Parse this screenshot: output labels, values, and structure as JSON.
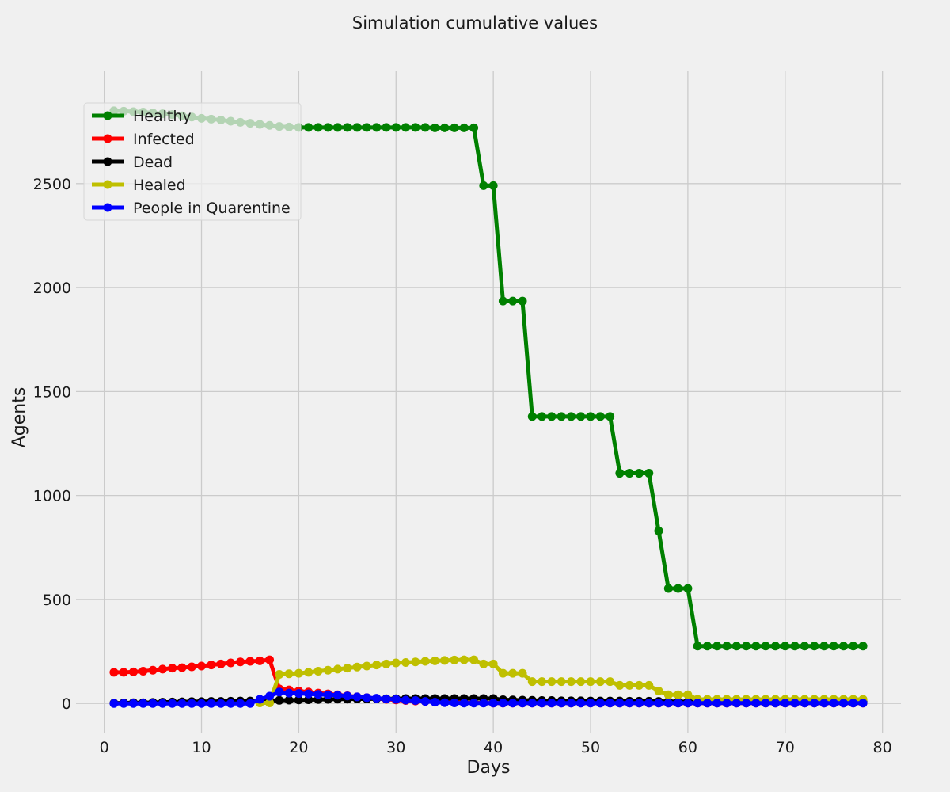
{
  "chart_data": {
    "type": "line",
    "title": "Simulation cumulative values",
    "xlabel": "Days",
    "ylabel": "Agents",
    "xlim": [
      -2.9,
      81.9
    ],
    "ylim": [
      -140,
      3040
    ],
    "xticks": [
      0,
      10,
      20,
      30,
      40,
      50,
      60,
      70,
      80
    ],
    "yticks": [
      0,
      500,
      1000,
      1500,
      2000,
      2500
    ],
    "grid": true,
    "legend_position": "upper-left",
    "x": [
      1,
      2,
      3,
      4,
      5,
      6,
      7,
      8,
      9,
      10,
      11,
      12,
      13,
      14,
      15,
      16,
      17,
      18,
      19,
      20,
      21,
      22,
      23,
      24,
      25,
      26,
      27,
      28,
      29,
      30,
      31,
      32,
      33,
      34,
      35,
      36,
      37,
      38,
      39,
      40,
      41,
      42,
      43,
      44,
      45,
      46,
      47,
      48,
      49,
      50,
      51,
      52,
      53,
      54,
      55,
      56,
      57,
      58,
      59,
      60,
      61,
      62,
      63,
      64,
      65,
      66,
      67,
      68,
      69,
      70,
      71,
      72,
      73,
      74,
      75,
      76,
      77,
      78
    ],
    "series": [
      {
        "name": "Healthy",
        "color": "#008000",
        "values": [
          2850,
          2848,
          2846,
          2844,
          2840,
          2836,
          2832,
          2826,
          2820,
          2814,
          2810,
          2806,
          2800,
          2795,
          2790,
          2785,
          2780,
          2775,
          2772,
          2770,
          2770,
          2770,
          2770,
          2770,
          2770,
          2770,
          2770,
          2770,
          2770,
          2770,
          2770,
          2770,
          2770,
          2768,
          2768,
          2768,
          2768,
          2768,
          2490,
          2490,
          1935,
          1935,
          1935,
          1380,
          1380,
          1380,
          1380,
          1380,
          1380,
          1380,
          1380,
          1380,
          1107,
          1107,
          1107,
          1107,
          830,
          553,
          553,
          553,
          276,
          276,
          276,
          276,
          276,
          276,
          276,
          276,
          276,
          276,
          276,
          276,
          276,
          276,
          276,
          276,
          276,
          276
        ]
      },
      {
        "name": "Infected",
        "color": "#ff0000",
        "values": [
          150,
          150,
          152,
          155,
          160,
          165,
          170,
          172,
          176,
          180,
          185,
          190,
          195,
          200,
          203,
          205,
          210,
          70,
          65,
          60,
          55,
          50,
          46,
          42,
          37,
          32,
          28,
          24,
          20,
          17,
          14,
          12,
          10,
          8,
          6,
          5,
          4,
          3,
          3,
          2,
          2,
          2,
          2,
          2,
          2,
          2,
          2,
          2,
          2,
          2,
          2,
          2,
          2,
          2,
          2,
          2,
          2,
          2,
          2,
          2,
          2,
          2,
          2,
          2,
          2,
          2,
          2,
          2,
          2,
          2,
          2,
          2,
          2,
          2,
          2,
          2,
          2,
          2
        ]
      },
      {
        "name": "Dead",
        "color": "#000000",
        "values": [
          2,
          3,
          4,
          4,
          5,
          6,
          7,
          8,
          9,
          9,
          10,
          10,
          11,
          12,
          12,
          13,
          14,
          15,
          16,
          17,
          18,
          19,
          20,
          21,
          21,
          22,
          22,
          23,
          23,
          23,
          24,
          24,
          24,
          24,
          24,
          24,
          24,
          24,
          24,
          24,
          18,
          17,
          16,
          15,
          14,
          14,
          13,
          13,
          13,
          12,
          12,
          12,
          12,
          11,
          11,
          11,
          10,
          10,
          9,
          9,
          8,
          8,
          8,
          8,
          8,
          8,
          8,
          8,
          8,
          8,
          8,
          8,
          8,
          8,
          8,
          8,
          8,
          8
        ]
      },
      {
        "name": "Healed",
        "color": "#bfbf00",
        "values": [
          null,
          null,
          null,
          null,
          null,
          null,
          null,
          null,
          null,
          null,
          null,
          null,
          null,
          null,
          null,
          3,
          3,
          140,
          143,
          145,
          150,
          155,
          160,
          165,
          170,
          175,
          180,
          185,
          190,
          195,
          197,
          200,
          203,
          205,
          207,
          209,
          210,
          210,
          190,
          190,
          145,
          145,
          145,
          105,
          105,
          105,
          105,
          105,
          105,
          105,
          105,
          105,
          87,
          87,
          87,
          87,
          60,
          42,
          42,
          42,
          20,
          20,
          20,
          20,
          20,
          20,
          20,
          20,
          20,
          20,
          20,
          20,
          20,
          20,
          20,
          20,
          20,
          20
        ]
      },
      {
        "name": "People in Quarentine",
        "color": "#0000ff",
        "values": [
          0,
          0,
          0,
          0,
          0,
          0,
          0,
          0,
          0,
          0,
          0,
          0,
          0,
          0,
          0,
          20,
          35,
          55,
          50,
          48,
          46,
          44,
          42,
          40,
          36,
          32,
          28,
          25,
          22,
          20,
          16,
          14,
          10,
          6,
          4,
          3,
          2,
          2,
          2,
          2,
          2,
          2,
          2,
          2,
          2,
          2,
          2,
          2,
          2,
          2,
          2,
          2,
          2,
          2,
          2,
          2,
          2,
          2,
          2,
          2,
          2,
          2,
          2,
          2,
          2,
          2,
          2,
          2,
          2,
          2,
          2,
          2,
          2,
          2,
          2,
          2,
          2,
          2
        ]
      }
    ]
  }
}
